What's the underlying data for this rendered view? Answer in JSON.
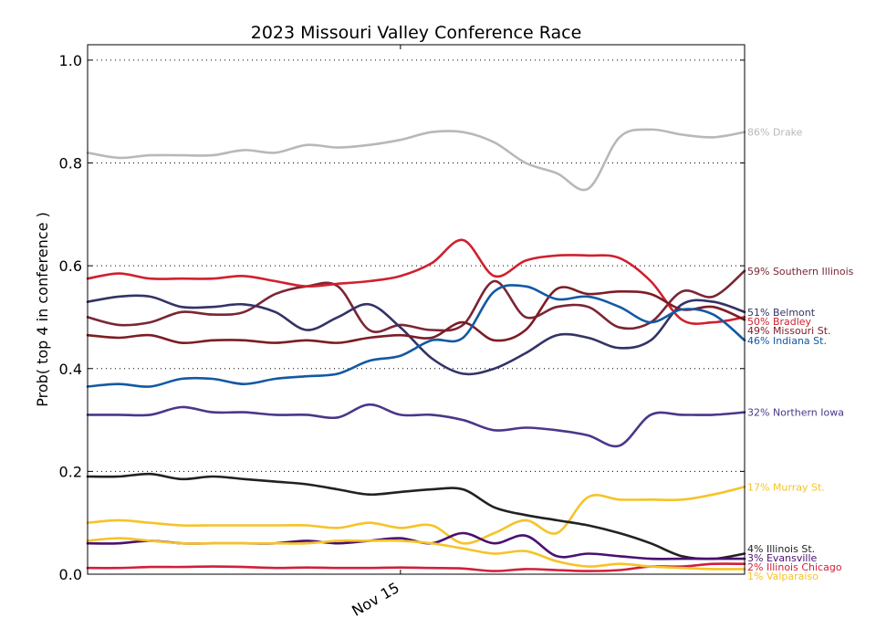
{
  "chart_data": {
    "type": "line",
    "title": "2023 Missouri Valley Conference Race",
    "ylabel": "Prob( top 4 in conference )",
    "xlabel": "",
    "ylim": [
      0.0,
      1.03
    ],
    "y_ticks": [
      "0.0",
      "0.2",
      "0.4",
      "0.6",
      "0.8",
      "1.0"
    ],
    "y_tick_values": [
      0.0,
      0.2,
      0.4,
      0.6,
      0.8,
      1.0
    ],
    "grid": "horizontal dotted",
    "x_ticks": [
      "Nov 15"
    ],
    "x_tick_positions": [
      10
    ],
    "xlim": [
      0,
      21
    ],
    "x": [
      0,
      1,
      2,
      3,
      4,
      5,
      6,
      7,
      8,
      9,
      10,
      11,
      12,
      13,
      14,
      15,
      16,
      17,
      18,
      19,
      20,
      21
    ],
    "series": [
      {
        "name": "Drake",
        "end_label": "86% Drake",
        "color": "#b8b8b8",
        "values": [
          0.82,
          0.81,
          0.815,
          0.815,
          0.815,
          0.825,
          0.82,
          0.835,
          0.83,
          0.835,
          0.845,
          0.86,
          0.86,
          0.84,
          0.8,
          0.78,
          0.75,
          0.85,
          0.865,
          0.855,
          0.85,
          0.86
        ]
      },
      {
        "name": "Southern Illinois",
        "end_label": "59% Southern Illinois",
        "color": "#7a2634",
        "values": [
          0.5,
          0.485,
          0.49,
          0.51,
          0.505,
          0.51,
          0.545,
          0.56,
          0.56,
          0.475,
          0.485,
          0.475,
          0.485,
          0.57,
          0.5,
          0.52,
          0.52,
          0.48,
          0.49,
          0.55,
          0.54,
          0.59
        ]
      },
      {
        "name": "Belmont",
        "end_label": "51% Belmont",
        "color": "#333366",
        "values": [
          0.53,
          0.54,
          0.54,
          0.52,
          0.52,
          0.525,
          0.51,
          0.475,
          0.5,
          0.525,
          0.48,
          0.42,
          0.39,
          0.4,
          0.43,
          0.465,
          0.46,
          0.44,
          0.455,
          0.525,
          0.53,
          0.51
        ]
      },
      {
        "name": "Bradley",
        "end_label": "50% Bradley",
        "color": "#d0202e",
        "values": [
          0.575,
          0.585,
          0.575,
          0.575,
          0.575,
          0.58,
          0.57,
          0.56,
          0.565,
          0.57,
          0.58,
          0.605,
          0.65,
          0.58,
          0.61,
          0.62,
          0.62,
          0.615,
          0.57,
          0.495,
          0.49,
          0.5
        ]
      },
      {
        "name": "Missouri St.",
        "end_label": "49% Missouri St.",
        "color": "#7d1c24",
        "values": [
          0.465,
          0.46,
          0.465,
          0.45,
          0.455,
          0.455,
          0.45,
          0.455,
          0.45,
          0.46,
          0.465,
          0.46,
          0.49,
          0.455,
          0.475,
          0.555,
          0.545,
          0.55,
          0.545,
          0.515,
          0.52,
          0.495
        ]
      },
      {
        "name": "Indiana St.",
        "end_label": "46% Indiana St.",
        "color": "#1259a3",
        "values": [
          0.365,
          0.37,
          0.365,
          0.38,
          0.38,
          0.37,
          0.38,
          0.385,
          0.39,
          0.415,
          0.425,
          0.455,
          0.46,
          0.55,
          0.56,
          0.535,
          0.54,
          0.52,
          0.49,
          0.515,
          0.505,
          0.455
        ]
      },
      {
        "name": "Northern Iowa",
        "end_label": "32% Northern Iowa",
        "color": "#4b3689",
        "values": [
          0.31,
          0.31,
          0.31,
          0.325,
          0.315,
          0.315,
          0.31,
          0.31,
          0.305,
          0.33,
          0.31,
          0.31,
          0.3,
          0.28,
          0.285,
          0.28,
          0.27,
          0.25,
          0.31,
          0.31,
          0.31,
          0.315
        ]
      },
      {
        "name": "Murray St.",
        "end_label": "17% Murray St.",
        "color": "#f6c328",
        "values": [
          0.1,
          0.105,
          0.1,
          0.095,
          0.095,
          0.095,
          0.095,
          0.095,
          0.09,
          0.1,
          0.09,
          0.095,
          0.06,
          0.08,
          0.105,
          0.08,
          0.15,
          0.145,
          0.145,
          0.145,
          0.155,
          0.17
        ]
      },
      {
        "name": "Illinois St.",
        "end_label": "4% Illinois St.",
        "color": "#222222",
        "values": [
          0.19,
          0.19,
          0.195,
          0.185,
          0.19,
          0.185,
          0.18,
          0.175,
          0.165,
          0.155,
          0.16,
          0.165,
          0.165,
          0.13,
          0.115,
          0.105,
          0.095,
          0.08,
          0.06,
          0.035,
          0.03,
          0.04
        ]
      },
      {
        "name": "Evansville",
        "end_label": "3% Evansville",
        "color": "#4a1070",
        "values": [
          0.06,
          0.06,
          0.065,
          0.06,
          0.06,
          0.06,
          0.06,
          0.065,
          0.06,
          0.065,
          0.07,
          0.06,
          0.08,
          0.06,
          0.075,
          0.035,
          0.04,
          0.035,
          0.03,
          0.03,
          0.03,
          0.03
        ]
      },
      {
        "name": "Illinois Chicago",
        "end_label": "2% Illinois Chicago",
        "color": "#d0203a",
        "values": [
          0.012,
          0.012,
          0.014,
          0.014,
          0.015,
          0.014,
          0.012,
          0.013,
          0.012,
          0.012,
          0.013,
          0.012,
          0.011,
          0.006,
          0.01,
          0.008,
          0.006,
          0.008,
          0.015,
          0.015,
          0.02,
          0.02
        ]
      },
      {
        "name": "Valparaiso",
        "end_label": "1% Valparaiso",
        "color": "#f6c328",
        "values": [
          0.065,
          0.07,
          0.065,
          0.06,
          0.06,
          0.06,
          0.06,
          0.06,
          0.065,
          0.065,
          0.065,
          0.06,
          0.05,
          0.04,
          0.045,
          0.025,
          0.015,
          0.02,
          0.015,
          0.012,
          0.01,
          0.01
        ]
      }
    ]
  }
}
